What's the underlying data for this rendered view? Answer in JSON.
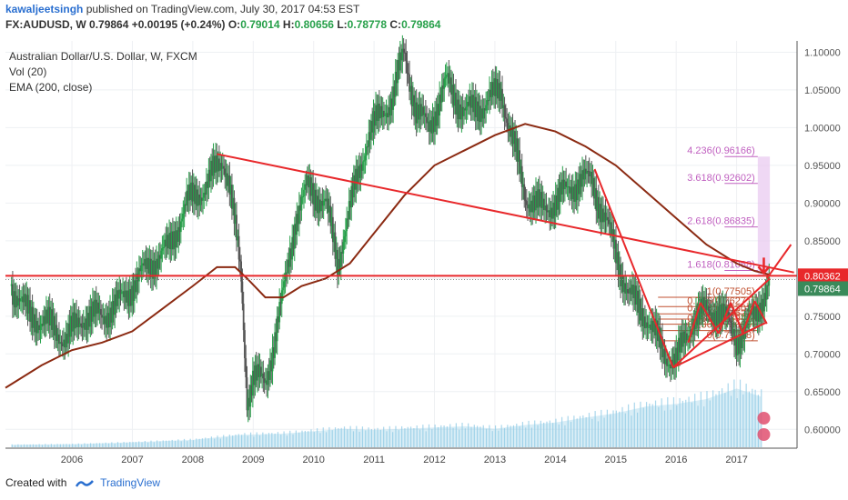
{
  "header": {
    "user": "kawaljeetsingh",
    "published": "published on TradingView.com, July 30, 2017 04:53 EST",
    "symbol": "FX:AUDUSD, W",
    "last": "0.79864",
    "change": "+0.00195 (+0.24%)",
    "o_label": "O:",
    "o": "0.79014",
    "h_label": "H:",
    "h": "0.80656",
    "l_label": "L:",
    "l": "0.78778",
    "c_label": "C:",
    "c": "0.79864"
  },
  "legend": {
    "title": "Australian Dollar/U.S. Dollar, W, FXCM",
    "vol": "Vol (20)",
    "ema": "EMA (200, close)"
  },
  "footer": {
    "created": "Created with",
    "brand": "TradingView"
  },
  "colors": {
    "up": "#27a04a",
    "candle": "#555555",
    "ema": "#8b2a12",
    "trend": "#e8282b",
    "volume": "#8ecae6",
    "fib_ext": "#c060c0",
    "fib_ret": "#c05030"
  },
  "chart_data": {
    "type": "line",
    "title": "Australian Dollar/U.S. Dollar, W, FXCM",
    "x_ticks": [
      "2006",
      "2007",
      "2008",
      "2009",
      "2010",
      "2011",
      "2012",
      "2013",
      "2014",
      "2015",
      "2016",
      "2017"
    ],
    "y_ticks": [
      "1.10000",
      "1.05000",
      "1.00000",
      "0.95000",
      "0.90000",
      "0.85000",
      "0.80000",
      "0.75000",
      "0.70000",
      "0.65000",
      "0.60000"
    ],
    "ylim": [
      0.575,
      1.115
    ],
    "price_series": {
      "name": "AUDUSD",
      "x": [
        2005.0,
        2005.3,
        2005.6,
        2005.9,
        2006.2,
        2006.5,
        2006.8,
        2007.0,
        2007.3,
        2007.6,
        2007.9,
        2008.2,
        2008.5,
        2008.6,
        2008.8,
        2008.9,
        2009.0,
        2009.2,
        2009.5,
        2009.7,
        2009.9,
        2010.2,
        2010.4,
        2010.5,
        2010.9,
        2011.3,
        2011.5,
        2011.7,
        2011.9,
        2012.2,
        2012.5,
        2012.8,
        2013.1,
        2013.3,
        2013.5,
        2013.8,
        2014.1,
        2014.4,
        2014.6,
        2014.9,
        2015.2,
        2015.5,
        2015.8,
        2016.0,
        2016.3,
        2016.7,
        2017.0,
        2017.3,
        2017.55
      ],
      "y": [
        0.79,
        0.75,
        0.74,
        0.72,
        0.75,
        0.75,
        0.77,
        0.79,
        0.82,
        0.84,
        0.9,
        0.92,
        0.96,
        0.93,
        0.8,
        0.64,
        0.67,
        0.66,
        0.78,
        0.88,
        0.92,
        0.9,
        0.82,
        0.86,
        0.99,
        1.04,
        1.1,
        1.02,
        1.0,
        1.06,
        1.02,
        1.03,
        1.05,
        0.98,
        0.91,
        0.89,
        0.91,
        0.93,
        0.93,
        0.86,
        0.78,
        0.75,
        0.7,
        0.69,
        0.75,
        0.76,
        0.72,
        0.75,
        0.7986
      ]
    },
    "ema_series": {
      "name": "EMA (200, close)",
      "x": [
        2004.9,
        2005.5,
        2006.0,
        2006.5,
        2007.0,
        2007.5,
        2008.0,
        2008.4,
        2008.7,
        2008.9,
        2009.2,
        2009.5,
        2009.8,
        2010.2,
        2010.6,
        2011.0,
        2011.5,
        2012.0,
        2012.5,
        2013.0,
        2013.5,
        2014.0,
        2014.5,
        2015.0,
        2015.5,
        2016.0,
        2016.5,
        2017.0,
        2017.3,
        2017.55
      ],
      "y": [
        0.655,
        0.685,
        0.705,
        0.715,
        0.73,
        0.76,
        0.79,
        0.815,
        0.815,
        0.8,
        0.775,
        0.775,
        0.79,
        0.8,
        0.82,
        0.86,
        0.91,
        0.95,
        0.97,
        0.99,
        1.005,
        0.995,
        0.975,
        0.95,
        0.915,
        0.88,
        0.845,
        0.82,
        0.81,
        0.805
      ]
    },
    "trendlines": [
      {
        "x": [
          2008.4,
          2017.95
        ],
        "y": [
          0.965,
          0.808
        ]
      },
      {
        "x": [
          2014.65,
          2015.95
        ],
        "y": [
          0.945,
          0.682
        ]
      },
      {
        "x": [
          2015.95,
          2017.55
        ],
        "y": [
          0.682,
          0.8
        ]
      },
      {
        "x": [
          2015.95,
          2017.5
        ],
        "y": [
          0.682,
          0.742
        ]
      },
      {
        "x": [
          2016.2,
          2016.4
        ],
        "y": [
          0.715,
          0.768
        ]
      },
      {
        "x": [
          2016.4,
          2016.7
        ],
        "y": [
          0.768,
          0.727
        ]
      },
      {
        "x": [
          2016.7,
          2016.9
        ],
        "y": [
          0.727,
          0.768
        ]
      },
      {
        "x": [
          2016.9,
          2017.1
        ],
        "y": [
          0.768,
          0.728
        ]
      },
      {
        "x": [
          2017.1,
          2017.3
        ],
        "y": [
          0.728,
          0.77
        ]
      },
      {
        "x": [
          2017.3,
          2017.5
        ],
        "y": [
          0.77,
          0.74
        ]
      },
      {
        "x": [
          2017.5,
          2017.9
        ],
        "y": [
          0.8,
          0.845
        ]
      }
    ],
    "horizontal_line": {
      "y": 0.80362,
      "label": "0.80362"
    },
    "last_price": {
      "y": 0.79864,
      "label": "0.79864"
    },
    "fib_levels": [
      {
        "label": "4.236(0.96166)",
        "y": 0.96166,
        "kind": "ext"
      },
      {
        "label": "3.618(0.92602)",
        "y": 0.92602,
        "kind": "ext"
      },
      {
        "label": "2.618(0.86835)",
        "y": 0.86835,
        "kind": "ext"
      },
      {
        "label": "1.618(0.81068)",
        "y": 0.81068,
        "kind": "ext"
      },
      {
        "label": "1(0.77505)",
        "y": 0.77505,
        "kind": "ret"
      },
      {
        "label": "0.786(0.76271)",
        "y": 0.76271,
        "kind": "ret"
      },
      {
        "label": "0.618(0.75302)",
        "y": 0.75302,
        "kind": "ret"
      },
      {
        "label": "0.5(0.74622)",
        "y": 0.74622,
        "kind": "ret"
      },
      {
        "label": "0.382(0.73941)",
        "y": 0.73941,
        "kind": "ret"
      },
      {
        "label": "0.236(0.73099)",
        "y": 0.73099,
        "kind": "ret"
      },
      {
        "label": "0(0.71738)",
        "y": 0.71738,
        "kind": "ret"
      }
    ],
    "volume_series": {
      "name": "Vol (20)",
      "x": [
        2005.0,
        2006.0,
        2007.0,
        2008.0,
        2008.8,
        2009.5,
        2010.0,
        2010.5,
        2011.0,
        2011.5,
        2012.0,
        2012.5,
        2013.0,
        2013.5,
        2014.0,
        2014.5,
        2015.0,
        2015.5,
        2016.0,
        2016.5,
        2017.0,
        2017.4
      ],
      "v": [
        0.04,
        0.05,
        0.08,
        0.12,
        0.2,
        0.22,
        0.26,
        0.3,
        0.28,
        0.3,
        0.32,
        0.34,
        0.3,
        0.36,
        0.4,
        0.48,
        0.55,
        0.66,
        0.7,
        0.78,
        0.95,
        0.82
      ]
    }
  }
}
